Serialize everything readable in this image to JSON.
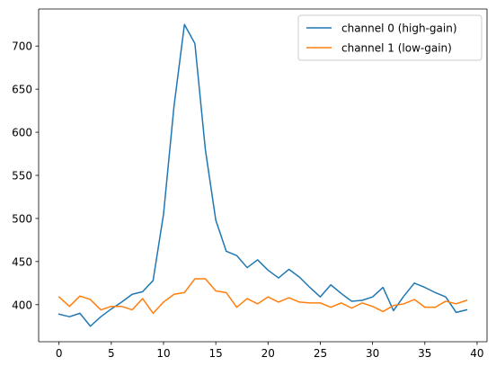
{
  "chart_data": {
    "type": "line",
    "title": "",
    "xlabel": "",
    "ylabel": "",
    "xlim": [
      -1.95,
      40.95
    ],
    "ylim": [
      357,
      743
    ],
    "xticks": [
      0,
      5,
      10,
      15,
      20,
      25,
      30,
      35,
      40
    ],
    "yticks": [
      400,
      450,
      500,
      550,
      600,
      650,
      700
    ],
    "grid": false,
    "legend_position": "top-right",
    "x": [
      0,
      1,
      2,
      3,
      4,
      5,
      6,
      7,
      8,
      9,
      10,
      11,
      12,
      13,
      14,
      15,
      16,
      17,
      18,
      19,
      20,
      21,
      22,
      23,
      24,
      25,
      26,
      27,
      28,
      29,
      30,
      31,
      32,
      33,
      34,
      35,
      36,
      37,
      38,
      39
    ],
    "series": [
      {
        "name": "channel 0 (high-gain)",
        "color": "#1f77b4",
        "values": [
          389,
          386,
          390,
          375,
          386,
          395,
          403,
          412,
          415,
          428,
          505,
          630,
          725,
          703,
          580,
          498,
          462,
          457,
          443,
          452,
          440,
          431,
          441,
          432,
          420,
          409,
          423,
          413,
          404,
          405,
          409,
          420,
          393,
          410,
          425,
          420,
          414,
          409,
          391,
          394
        ]
      },
      {
        "name": "channel 1 (low-gain)",
        "color": "#ff7f0e",
        "values": [
          409,
          398,
          410,
          406,
          394,
          398,
          398,
          394,
          407,
          390,
          403,
          412,
          414,
          430,
          430,
          416,
          414,
          397,
          407,
          401,
          409,
          403,
          408,
          403,
          402,
          402,
          397,
          402,
          396,
          402,
          398,
          392,
          399,
          401,
          406,
          397,
          397,
          404,
          401,
          405
        ]
      }
    ]
  }
}
